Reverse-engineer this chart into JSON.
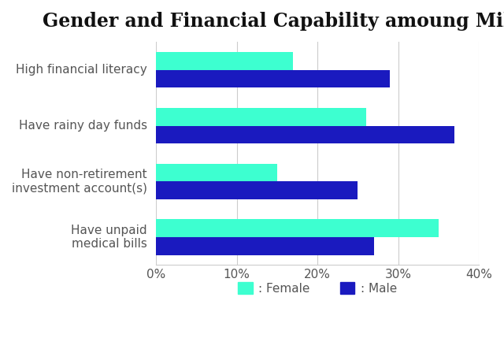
{
  "title": "Gender and Financial Capability amoung Millennials",
  "categories": [
    "High financial literacy",
    "Have rainy day funds",
    "Have non-retirement\ninvestment account(s)",
    "Have unpaid\nmedical bills"
  ],
  "female_values": [
    17,
    26,
    15,
    35
  ],
  "male_values": [
    29,
    37,
    25,
    27
  ],
  "female_color": "#3DFFD0",
  "male_color": "#1A1ABF",
  "xlim": [
    0,
    40
  ],
  "xtick_values": [
    0,
    10,
    20,
    30,
    40
  ],
  "xtick_labels": [
    "0%",
    "10%",
    "20%",
    "30%",
    "40%"
  ],
  "legend_female": ": Female",
  "legend_male": ": Male",
  "background_color": "#ffffff",
  "title_fontsize": 17,
  "label_fontsize": 11,
  "tick_fontsize": 11,
  "bar_height": 0.32,
  "grid_color": "#cccccc",
  "text_color": "#555555",
  "title_color": "#111111"
}
